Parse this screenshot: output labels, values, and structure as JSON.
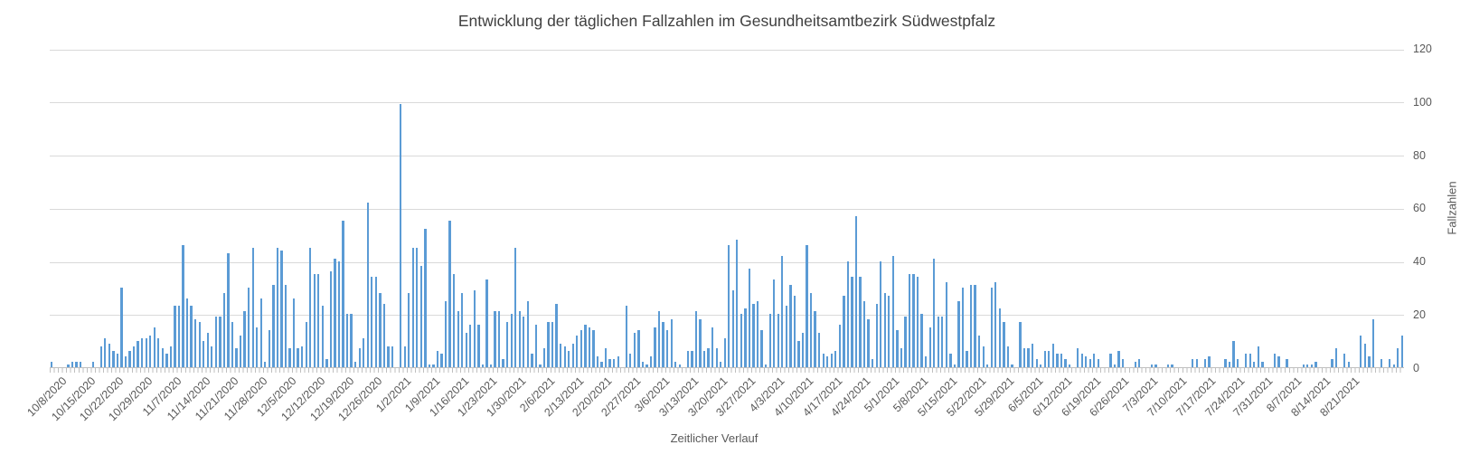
{
  "chart_data": {
    "type": "bar",
    "title": "Entwicklung der täglichen Fallzahlen im Gesundheitsamtbezirk Südwestpfalz",
    "xlabel": "Zeitlicher Verlauf",
    "ylabel": "Fallzahlen",
    "ylim": [
      0,
      120
    ],
    "yticks": [
      0,
      20,
      40,
      60,
      80,
      100,
      120
    ],
    "grid": true,
    "legend": false,
    "bar_color": "#5B9BD5",
    "gridline_color": "#D9D9D9",
    "axis_line_color": "#BFBFBF",
    "text_color": "#595959",
    "title_color": "#404040",
    "n_slots": 330,
    "x_first_label_slot": 2,
    "x_tick_label_every": 7,
    "x_tick_labels": [
      "10/8/2020",
      "10/15/2020",
      "10/22/2020",
      "10/29/2020",
      "11/7/2020",
      "11/14/2020",
      "11/21/2020",
      "11/28/2020",
      "12/5/2020",
      "12/12/2020",
      "12/19/2020",
      "12/26/2020",
      "1/2/2021",
      "1/9/2021",
      "1/16/2021",
      "1/23/2021",
      "1/30/2021",
      "2/6/2021",
      "2/13/2021",
      "2/20/2021",
      "2/27/2021",
      "3/6/2021",
      "3/13/2021",
      "3/20/2021",
      "3/27/2021",
      "4/3/2021",
      "4/10/2021",
      "4/17/2021",
      "4/24/2021",
      "5/1/2021",
      "5/8/2021",
      "5/15/2021",
      "5/22/2021",
      "5/29/2021",
      "6/5/2021",
      "6/12/2021",
      "6/19/2021",
      "6/26/2021",
      "7/3/2021",
      "7/10/2021",
      "7/17/2021",
      "7/24/2021",
      "7/31/2021",
      "8/7/2021",
      "8/14/2021",
      "8/21/2021"
    ],
    "values": [
      2,
      0,
      0,
      0,
      1,
      2,
      2,
      2,
      0,
      0,
      2,
      0,
      8,
      11,
      9,
      6,
      5,
      30,
      4,
      6,
      8,
      10,
      11,
      11,
      12,
      15,
      11,
      7,
      5,
      8,
      23,
      23,
      46,
      26,
      23,
      18,
      17,
      10,
      13,
      8,
      19,
      19,
      28,
      43,
      17,
      7,
      12,
      21,
      30,
      45,
      15,
      26,
      2,
      14,
      31,
      45,
      44,
      31,
      7,
      26,
      7,
      8,
      17,
      45,
      35,
      35,
      23,
      3,
      36,
      41,
      40,
      55,
      20,
      20,
      2,
      7,
      11,
      62,
      34,
      34,
      28,
      24,
      8,
      8,
      0,
      99,
      8,
      28,
      45,
      45,
      38,
      52,
      1,
      1,
      6,
      5,
      25,
      55,
      35,
      21,
      28,
      13,
      16,
      29,
      16,
      1,
      33,
      1,
      21,
      21,
      3,
      17,
      20,
      45,
      21,
      19,
      25,
      5,
      16,
      1,
      7,
      17,
      17,
      24,
      9,
      8,
      6,
      9,
      12,
      14,
      16,
      15,
      14,
      4,
      2,
      7,
      3,
      3,
      4,
      0,
      23,
      5,
      13,
      14,
      2,
      1,
      4,
      15,
      21,
      17,
      14,
      18,
      2,
      1,
      0,
      6,
      6,
      21,
      18,
      6,
      7,
      15,
      7,
      2,
      11,
      46,
      29,
      48,
      20,
      22,
      37,
      24,
      25,
      14,
      1,
      20,
      33,
      20,
      42,
      23,
      31,
      27,
      10,
      13,
      46,
      28,
      21,
      13,
      5,
      4,
      5,
      6,
      16,
      27,
      40,
      34,
      57,
      34,
      25,
      18,
      3,
      24,
      40,
      28,
      27,
      42,
      14,
      7,
      19,
      35,
      35,
      34,
      20,
      4,
      15,
      41,
      19,
      19,
      32,
      5,
      1,
      25,
      30,
      6,
      31,
      31,
      12,
      8,
      1,
      30,
      32,
      22,
      17,
      8,
      1,
      0,
      17,
      7,
      7,
      9,
      3,
      1,
      6,
      6,
      9,
      5,
      5,
      3,
      1,
      0,
      7,
      5,
      4,
      3,
      5,
      3,
      0,
      0,
      5,
      1,
      6,
      3,
      0,
      0,
      2,
      3,
      0,
      0,
      1,
      1,
      0,
      0,
      1,
      1,
      0,
      0,
      0,
      0,
      3,
      3,
      0,
      3,
      4,
      0,
      0,
      0,
      3,
      2,
      10,
      3,
      0,
      5,
      5,
      2,
      8,
      2,
      0,
      0,
      5,
      4,
      0,
      3,
      0,
      0,
      0,
      1,
      1,
      1,
      2,
      0,
      0,
      0,
      3,
      7,
      0,
      5,
      2,
      0,
      0,
      12,
      9,
      4,
      18,
      0,
      3,
      0,
      3,
      1,
      7,
      12
    ]
  }
}
